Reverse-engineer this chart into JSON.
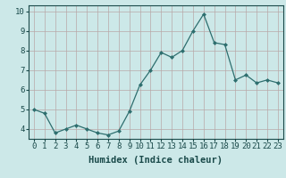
{
  "xlabel": "Humidex (Indice chaleur)",
  "x": [
    0,
    1,
    2,
    3,
    4,
    5,
    6,
    7,
    8,
    9,
    10,
    11,
    12,
    13,
    14,
    15,
    16,
    17,
    18,
    19,
    20,
    21,
    22,
    23
  ],
  "y": [
    5.0,
    4.8,
    3.8,
    4.0,
    4.2,
    4.0,
    3.8,
    3.7,
    3.9,
    4.9,
    6.25,
    7.0,
    7.9,
    7.65,
    8.0,
    9.0,
    9.85,
    8.4,
    8.3,
    6.5,
    6.75,
    6.35,
    6.5,
    6.35
  ],
  "line_color": "#2d6e6e",
  "marker": "D",
  "marker_size": 2.0,
  "line_width": 0.9,
  "bg_color": "#cce8e8",
  "grid_color": "#b8a8a8",
  "text_color": "#1a4a4a",
  "xlim": [
    -0.5,
    23.5
  ],
  "ylim": [
    3.5,
    10.3
  ],
  "yticks": [
    4,
    5,
    6,
    7,
    8,
    9,
    10
  ],
  "xticks": [
    0,
    1,
    2,
    3,
    4,
    5,
    6,
    7,
    8,
    9,
    10,
    11,
    12,
    13,
    14,
    15,
    16,
    17,
    18,
    19,
    20,
    21,
    22,
    23
  ],
  "xlabel_fontsize": 7.5,
  "tick_fontsize": 6.5
}
